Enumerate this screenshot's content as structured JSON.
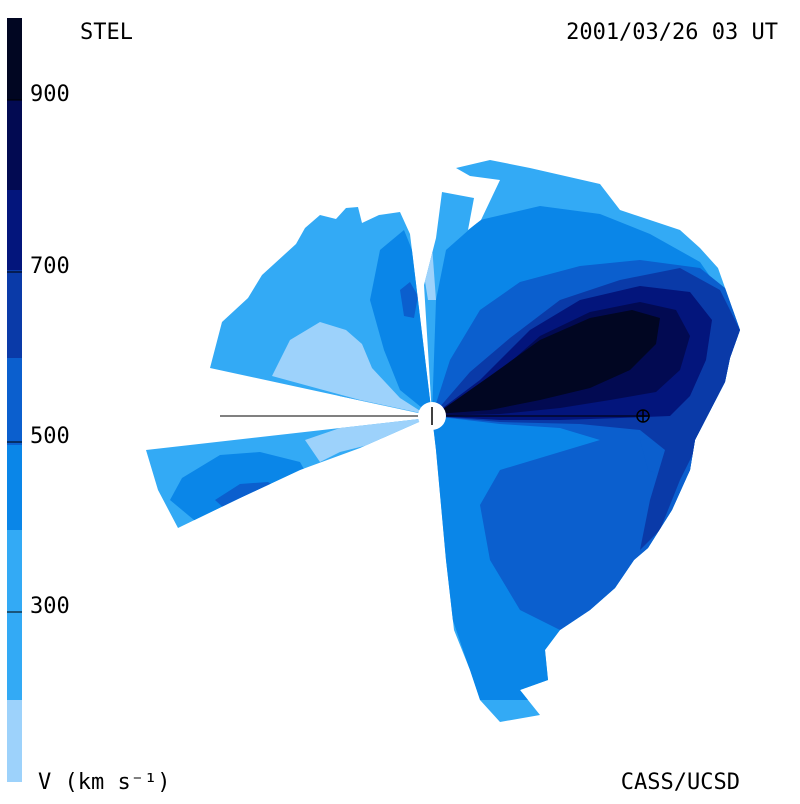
{
  "header": {
    "left_label": "STEL",
    "timestamp": "2001/03/26 03 UT",
    "credit": "CASS/UCSD"
  },
  "colorbar": {
    "unit_label": "V (km s⁻¹)",
    "ticks": [
      "900",
      "700",
      "500",
      "300"
    ],
    "tick_values": [
      900,
      700,
      500,
      300
    ],
    "range": [
      100,
      1000
    ],
    "levels": [
      {
        "from": 100,
        "to": 200,
        "color": "#9dd2fb"
      },
      {
        "from": 200,
        "to": 300,
        "color": "#33aaf5"
      },
      {
        "from": 300,
        "to": 400,
        "color": "#0a86e8"
      },
      {
        "from": 400,
        "to": 500,
        "color": "#0b5fce"
      },
      {
        "from": 500,
        "to": 600,
        "color": "#0a3aa8"
      },
      {
        "from": 600,
        "to": 700,
        "color": "#03157c"
      },
      {
        "from": 700,
        "to": 800,
        "color": "#020a52"
      },
      {
        "from": 800,
        "to": 1000,
        "color": "#010622"
      }
    ]
  },
  "chart_data": {
    "type": "heatmap",
    "title": "STEL",
    "quantity": "solar wind speed",
    "unit": "km s⁻¹",
    "timestamp": "2001/03/26 03 UT",
    "background_speed_km_s": 350,
    "fast_stream_peak_km_s": 900,
    "slow_regions_km_s": 200,
    "markers": [
      "Sun (center)",
      "Earth (⊕)"
    ]
  }
}
